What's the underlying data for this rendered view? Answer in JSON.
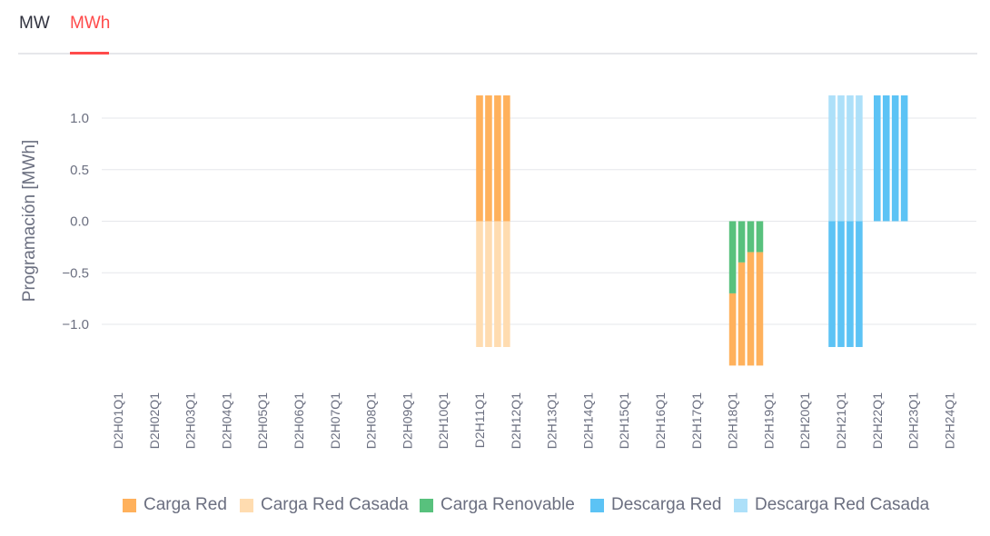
{
  "tabs": [
    {
      "label": "MW",
      "active": false
    },
    {
      "label": "MWh",
      "active": true
    }
  ],
  "colors": {
    "accent": "#ff4b4b",
    "grid": "#e6e7eb",
    "axis_text": "#6b6f80"
  },
  "chart_data": {
    "type": "bar",
    "stacked": true,
    "ylabel": "Programación [MWh]",
    "xlabel": "",
    "ylim": [
      -1.45,
      1.35
    ],
    "yticks": [
      1.0,
      0.5,
      0.0,
      -0.5,
      -1.0
    ],
    "ytick_labels": [
      "1.0",
      "0.5",
      "0.0",
      "−0.5",
      "−1.0"
    ],
    "grid": true,
    "legend_position": "bottom-center",
    "categories": [
      "D2H01Q1",
      "D2H02Q1",
      "D2H03Q1",
      "D2H04Q1",
      "D2H05Q1",
      "D2H06Q1",
      "D2H07Q1",
      "D2H08Q1",
      "D2H09Q1",
      "D2H10Q1",
      "D2H11Q1",
      "D2H12Q1",
      "D2H13Q1",
      "D2H14Q1",
      "D2H15Q1",
      "D2H16Q1",
      "D2H17Q1",
      "D2H18Q1",
      "D2H19Q1",
      "D2H20Q1",
      "D2H21Q1",
      "D2H22Q1",
      "D2H23Q1",
      "D2H24Q1"
    ],
    "bars": [
      {
        "x": "D2H11Q1",
        "values": {
          "Carga Red": 1.22,
          "Carga Red Casada": -1.22
        }
      },
      {
        "x": "D2H11Q2",
        "values": {
          "Carga Red": 1.22,
          "Carga Red Casada": -1.22
        }
      },
      {
        "x": "D2H11Q3",
        "values": {
          "Carga Red": 1.22,
          "Carga Red Casada": -1.22
        }
      },
      {
        "x": "D2H11Q4",
        "values": {
          "Carga Red": 1.22,
          "Carga Red Casada": -1.22
        }
      },
      {
        "x": "D2H18Q1",
        "values": {
          "Carga Renovable": -0.7,
          "Carga Red": -0.7
        }
      },
      {
        "x": "D2H18Q2",
        "values": {
          "Carga Renovable": -0.4,
          "Carga Red": -1.0
        }
      },
      {
        "x": "D2H18Q3",
        "values": {
          "Carga Renovable": -0.3,
          "Carga Red": -1.1
        }
      },
      {
        "x": "D2H18Q4",
        "values": {
          "Carga Renovable": -0.3,
          "Carga Red": -1.1
        }
      },
      {
        "x": "D2H20Q4",
        "values": {
          "Descarga Red Casada": 1.22,
          "Descarga Red": -1.22
        }
      },
      {
        "x": "D2H21Q1",
        "values": {
          "Descarga Red Casada": 1.22,
          "Descarga Red": -1.22
        }
      },
      {
        "x": "D2H21Q2",
        "values": {
          "Descarga Red Casada": 1.22,
          "Descarga Red": -1.22
        }
      },
      {
        "x": "D2H21Q3",
        "values": {
          "Descarga Red Casada": 1.22,
          "Descarga Red": -1.22
        }
      },
      {
        "x": "D2H22Q1",
        "values": {
          "Descarga Red": 1.22
        }
      },
      {
        "x": "D2H22Q2",
        "values": {
          "Descarga Red": 1.22
        }
      },
      {
        "x": "D2H22Q3",
        "values": {
          "Descarga Red": 1.22
        }
      },
      {
        "x": "D2H22Q4",
        "values": {
          "Descarga Red": 1.22
        }
      }
    ],
    "series": [
      {
        "name": "Carga Red",
        "color": "#ffb15c"
      },
      {
        "name": "Carga Red Casada",
        "color": "#ffdcb0"
      },
      {
        "name": "Carga Renovable",
        "color": "#58c17d"
      },
      {
        "name": "Descarga Red",
        "color": "#5cc3f5"
      },
      {
        "name": "Descarga Red Casada",
        "color": "#ade0f9"
      }
    ]
  }
}
